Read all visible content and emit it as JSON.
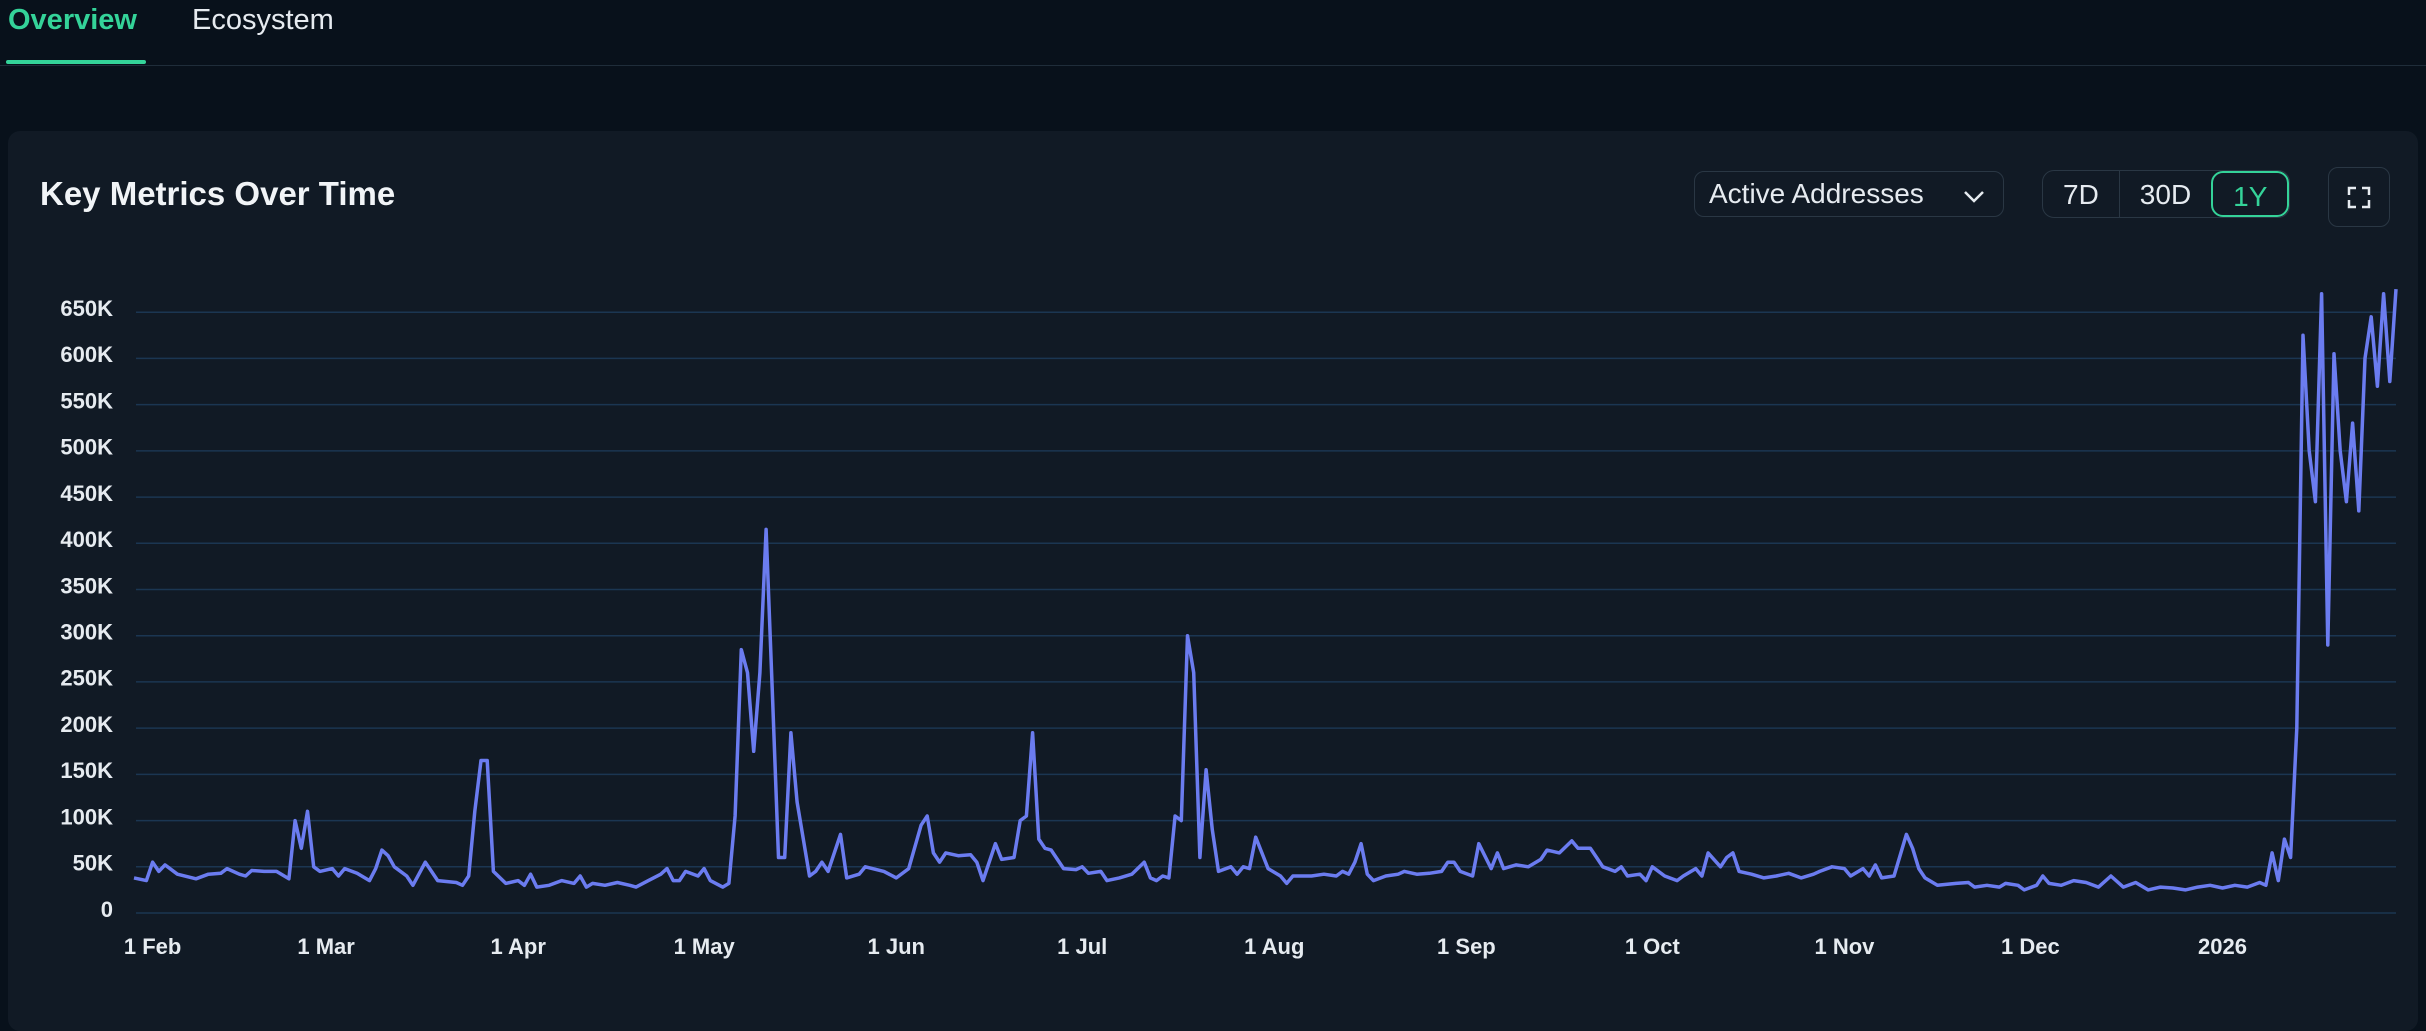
{
  "tabs": [
    "Overview",
    "Ecosystem"
  ],
  "active_tab": 0,
  "metric_selector": "Active Addresses",
  "ranges": [
    "7D",
    "30D",
    "1Y"
  ],
  "active_range": 2,
  "chart_data": {
    "type": "line",
    "title": "Key Metrics Over Time",
    "color": "#6b7cf0",
    "grid": true,
    "x": [
      -3,
      -1,
      0,
      1,
      2,
      4,
      7,
      9,
      11,
      12,
      14,
      15,
      16,
      18,
      20,
      22,
      23,
      24,
      25,
      26,
      27,
      29,
      30,
      31,
      33,
      35,
      36,
      37,
      38,
      39,
      41,
      42,
      44,
      45,
      46,
      49,
      50,
      51,
      52,
      53,
      54,
      55,
      57,
      59,
      60,
      61,
      62,
      64,
      66,
      68,
      69,
      70,
      71,
      73,
      75,
      77,
      78,
      80,
      82,
      83,
      84,
      85,
      86,
      88,
      89,
      90,
      92,
      93,
      94,
      95,
      96,
      97,
      98,
      99,
      100,
      101,
      102,
      103,
      104,
      106,
      107,
      108,
      109,
      111,
      112,
      114,
      115,
      118,
      120,
      122,
      124,
      125,
      126,
      127,
      128,
      130,
      132,
      133,
      134,
      136,
      137,
      139,
      140,
      141,
      142,
      143,
      144,
      145,
      147,
      149,
      150,
      151,
      153,
      154,
      156,
      158,
      160,
      161,
      162,
      163,
      164,
      165,
      166,
      167,
      168,
      169,
      170,
      171,
      172,
      174,
      175,
      176,
      177,
      178,
      179,
      180,
      182,
      183,
      184,
      187,
      189,
      191,
      192,
      193,
      194,
      195,
      196,
      197,
      199,
      201,
      202,
      204,
      206,
      208,
      209,
      210,
      211,
      213,
      214,
      216,
      217,
      218,
      220,
      222,
      224,
      225,
      227,
      229,
      230,
      232,
      233,
      234,
      236,
      237,
      238,
      240,
      241,
      242,
      244,
      246,
      247,
      249,
      250,
      251,
      253,
      254,
      255,
      256,
      258,
      260,
      262,
      264,
      266,
      268,
      269,
      271,
      273,
      274,
      276,
      277,
      278,
      279,
      281,
      283,
      284,
      285,
      286,
      288,
      291,
      293,
      294,
      296,
      298,
      299,
      301,
      302,
      304,
      305,
      306,
      308,
      310,
      312,
      314,
      316,
      318,
      320,
      322,
      324,
      326,
      328,
      330,
      332,
      334,
      336,
      338,
      340,
      341,
      342,
      343,
      344,
      345,
      346,
      347,
      348,
      349,
      350,
      351,
      352,
      353,
      354,
      355,
      356,
      357,
      358,
      359,
      360,
      361,
      362
    ],
    "values": [
      38000,
      35000,
      55000,
      45000,
      52000,
      42000,
      37000,
      42000,
      43000,
      48000,
      42000,
      40000,
      46000,
      45000,
      45000,
      37000,
      100000,
      70000,
      110000,
      50000,
      45000,
      48000,
      40000,
      48000,
      43000,
      35000,
      48000,
      68000,
      62000,
      50000,
      40000,
      30000,
      55000,
      45000,
      35000,
      33000,
      30000,
      40000,
      110000,
      165000,
      165000,
      45000,
      32000,
      35000,
      30000,
      42000,
      28000,
      30000,
      35000,
      32000,
      40000,
      28000,
      32000,
      30000,
      33000,
      30000,
      28000,
      35000,
      42000,
      48000,
      35000,
      35000,
      45000,
      40000,
      48000,
      35000,
      28000,
      32000,
      105000,
      285000,
      260000,
      175000,
      260000,
      415000,
      240000,
      60000,
      60000,
      195000,
      120000,
      40000,
      45000,
      55000,
      45000,
      85000,
      38000,
      42000,
      50000,
      45000,
      38000,
      48000,
      95000,
      105000,
      65000,
      55000,
      65000,
      62000,
      63000,
      55000,
      35000,
      75000,
      58000,
      60000,
      100000,
      105000,
      195000,
      80000,
      70000,
      68000,
      48000,
      47000,
      50000,
      43000,
      45000,
      35000,
      38000,
      42000,
      55000,
      38000,
      35000,
      40000,
      38000,
      105000,
      100000,
      300000,
      260000,
      60000,
      155000,
      90000,
      45000,
      50000,
      42000,
      50000,
      48000,
      82000,
      65000,
      48000,
      40000,
      32000,
      40000,
      40000,
      42000,
      40000,
      45000,
      42000,
      55000,
      75000,
      42000,
      35000,
      40000,
      42000,
      45000,
      42000,
      43000,
      45000,
      55000,
      55000,
      45000,
      40000,
      75000,
      48000,
      65000,
      48000,
      52000,
      50000,
      58000,
      68000,
      65000,
      78000,
      70000,
      70000,
      60000,
      50000,
      45000,
      50000,
      40000,
      42000,
      35000,
      50000,
      40000,
      35000,
      40000,
      48000,
      40000,
      65000,
      50000,
      60000,
      65000,
      45000,
      42000,
      38000,
      40000,
      43000,
      38000,
      42000,
      45000,
      50000,
      48000,
      40000,
      48000,
      40000,
      52000,
      38000,
      40000,
      85000,
      70000,
      48000,
      38000,
      30000,
      32000,
      33000,
      28000,
      30000,
      28000,
      32000,
      30000,
      25000,
      30000,
      40000,
      32000,
      30000,
      35000,
      33000,
      28000,
      40000,
      28000,
      33000,
      25000,
      28000,
      27000,
      25000,
      28000,
      30000,
      27000,
      30000,
      28000,
      33000,
      30000,
      65000,
      35000,
      80000,
      60000,
      200000,
      625000,
      500000,
      445000,
      670000,
      290000,
      605000,
      500000,
      445000,
      530000,
      435000,
      600000,
      645000,
      570000,
      670000,
      575000,
      675000
    ],
    "xlim": [
      -3,
      362
    ],
    "xticks": [
      {
        "value": 0,
        "label": "1 Feb"
      },
      {
        "value": 28,
        "label": "1 Mar"
      },
      {
        "value": 59,
        "label": "1 Apr"
      },
      {
        "value": 89,
        "label": "1 May"
      },
      {
        "value": 120,
        "label": "1 Jun"
      },
      {
        "value": 150,
        "label": "1 Jul"
      },
      {
        "value": 181,
        "label": "1 Aug"
      },
      {
        "value": 212,
        "label": "1 Sep"
      },
      {
        "value": 242,
        "label": "1 Oct"
      },
      {
        "value": 273,
        "label": "1 Nov"
      },
      {
        "value": 303,
        "label": "1 Dec"
      },
      {
        "value": 334,
        "label": "2026"
      }
    ],
    "ylim": [
      0,
      700000
    ],
    "yticks": [
      0,
      {
        "value": 50000,
        "label": "50K"
      },
      {
        "value": 100000,
        "label": "100K"
      },
      {
        "value": 150000,
        "label": "150K"
      },
      {
        "value": 200000,
        "label": "200K"
      },
      {
        "value": 250000,
        "label": "250K"
      },
      {
        "value": 300000,
        "label": "300K"
      },
      {
        "value": 350000,
        "label": "350K"
      },
      {
        "value": 400000,
        "label": "400K"
      },
      {
        "value": 450000,
        "label": "450K"
      },
      {
        "value": 500000,
        "label": "500K"
      },
      {
        "value": 550000,
        "label": "550K"
      },
      {
        "value": 600000,
        "label": "600K"
      },
      {
        "value": 650000,
        "label": "650K"
      }
    ]
  }
}
